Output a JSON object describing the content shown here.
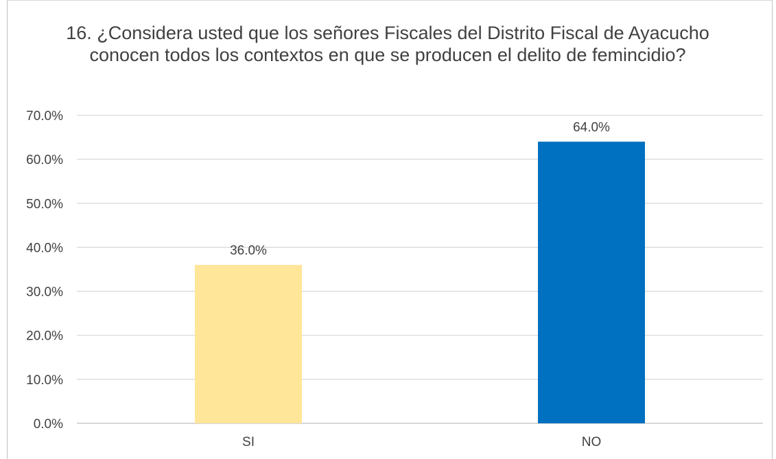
{
  "chart_data": {
    "type": "bar",
    "title": "16. ¿Considera usted que los señores Fiscales del Distrito Fiscal de Ayacucho conocen todos los contextos en que se producen el delito de femincidio?",
    "categories": [
      "SI",
      "NO"
    ],
    "values": [
      36.0,
      64.0
    ],
    "data_labels": [
      "36.0%",
      "64.0%"
    ],
    "bar_colors": [
      "#FFE699",
      "#0070C0"
    ],
    "ylim": [
      0,
      70
    ],
    "yticks": [
      0,
      10,
      20,
      30,
      40,
      50,
      60,
      70
    ],
    "ytick_labels": [
      "0.0%",
      "10.0%",
      "20.0%",
      "30.0%",
      "40.0%",
      "50.0%",
      "60.0%",
      "70.0%"
    ],
    "xlabel": "",
    "ylabel": "",
    "grid": true,
    "legend": "none"
  }
}
